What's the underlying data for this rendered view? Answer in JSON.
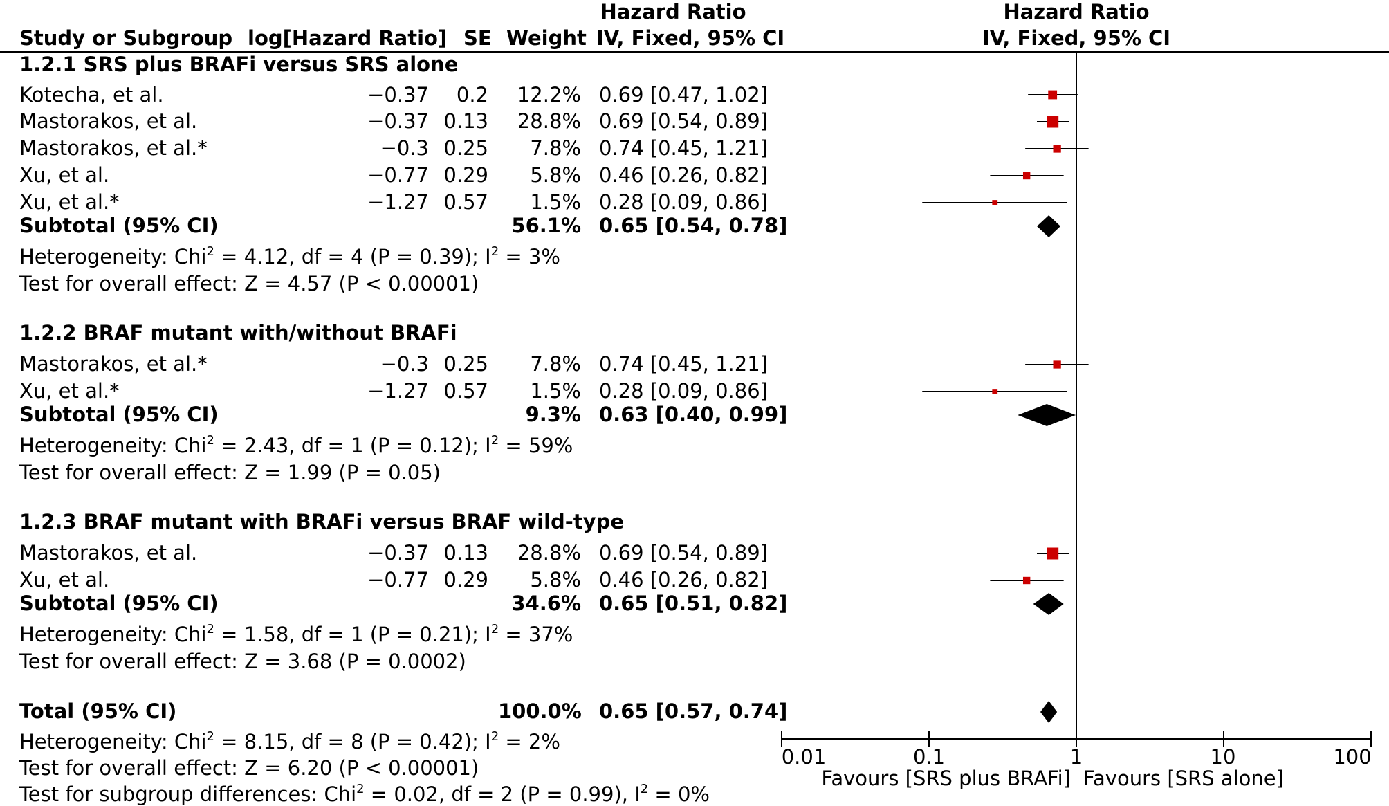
{
  "colors": {
    "box": "#cc0000",
    "diamond": "#000000",
    "line": "#000000"
  },
  "header": {
    "study": "Study or Subgroup",
    "loghr": "log[Hazard Ratio]",
    "se": "SE",
    "weight": "Weight",
    "hr_title": "Hazard Ratio",
    "hr_method": "IV, Fixed, 95% CI",
    "plot_title": "Hazard Ratio",
    "plot_method": "IV, Fixed, 95% CI"
  },
  "groups": [
    {
      "title": "1.2.1 SRS plus BRAFi versus SRS alone",
      "studies": [
        {
          "name": "Kotecha, et al.",
          "loghr": "−0.37",
          "se": "0.2",
          "weight": "12.2%",
          "ci": "0.69 [0.47, 1.02]"
        },
        {
          "name": "Mastorakos, et al.",
          "loghr": "−0.37",
          "se": "0.13",
          "weight": "28.8%",
          "ci": "0.69 [0.54, 0.89]"
        },
        {
          "name": "Mastorakos, et al.*",
          "loghr": "−0.3",
          "se": "0.25",
          "weight": "7.8%",
          "ci": "0.74 [0.45, 1.21]"
        },
        {
          "name": "Xu, et al.",
          "loghr": "−0.77",
          "se": "0.29",
          "weight": "5.8%",
          "ci": "0.46 [0.26, 0.82]"
        },
        {
          "name": "Xu, et al.*",
          "loghr": "−1.27",
          "se": "0.57",
          "weight": "1.5%",
          "ci": "0.28 [0.09, 0.86]"
        }
      ],
      "subtotal": {
        "label": "Subtotal (95% CI)",
        "weight": "56.1%",
        "ci": "0.65 [0.54, 0.78]"
      },
      "het": {
        "a": "Heterogeneity: Chi",
        "b": " = 4.12, df = 4 (P = 0.39); I",
        "c": " = 3%"
      },
      "effect": "Test for overall effect: Z = 4.57 (P < 0.00001)"
    },
    {
      "title": "1.2.2 BRAF mutant with/without BRAFi",
      "studies": [
        {
          "name": "Mastorakos, et al.*",
          "loghr": "−0.3",
          "se": "0.25",
          "weight": "7.8%",
          "ci": "0.74 [0.45, 1.21]"
        },
        {
          "name": "Xu, et al.*",
          "loghr": "−1.27",
          "se": "0.57",
          "weight": "1.5%",
          "ci": "0.28 [0.09, 0.86]"
        }
      ],
      "subtotal": {
        "label": "Subtotal (95% CI)",
        "weight": "9.3%",
        "ci": "0.63 [0.40, 0.99]"
      },
      "het": {
        "a": "Heterogeneity: Chi",
        "b": " = 2.43, df = 1 (P = 0.12); I",
        "c": " = 59%"
      },
      "effect": "Test for overall effect: Z = 1.99 (P = 0.05)"
    },
    {
      "title": "1.2.3 BRAF mutant with BRAFi versus BRAF wild-type",
      "studies": [
        {
          "name": "Mastorakos, et al.",
          "loghr": "−0.37",
          "se": "0.13",
          "weight": "28.8%",
          "ci": "0.69 [0.54, 0.89]"
        },
        {
          "name": "Xu, et al.",
          "loghr": "−0.77",
          "se": "0.29",
          "weight": "5.8%",
          "ci": "0.46 [0.26, 0.82]"
        }
      ],
      "subtotal": {
        "label": "Subtotal (95% CI)",
        "weight": "34.6%",
        "ci": "0.65 [0.51, 0.82]"
      },
      "het": {
        "a": "Heterogeneity: Chi",
        "b": " = 1.58, df = 1 (P = 0.21); I",
        "c": " = 37%"
      },
      "effect": "Test for overall effect: Z = 3.68 (P = 0.0002)"
    }
  ],
  "total": {
    "label": "Total (95% CI)",
    "weight": "100.0%",
    "ci": "0.65 [0.57, 0.74]",
    "het": {
      "a": "Heterogeneity: Chi",
      "b": " = 8.15, df = 8 (P = 0.42); I",
      "c": " = 2%"
    },
    "effect": "Test for overall effect: Z = 6.20 (P < 0.00001)",
    "subgroup": {
      "a": "Test for subgroup differences: Chi",
      "b": " = 0.02, df = 2 (P = 0.99), I",
      "c": " = 0%"
    }
  },
  "sup2": "2",
  "axis": {
    "ticks": [
      "0.01",
      "0.1",
      "1",
      "10",
      "100"
    ],
    "favours_left": "Favours [SRS plus BRAFi]",
    "favours_right": "Favours [SRS alone]"
  },
  "chart_data": {
    "type": "forest",
    "scale": "log",
    "xlim": [
      0.01,
      100
    ],
    "reference_line": 1,
    "series": [
      {
        "name": "1.2.1 SRS plus BRAFi versus SRS alone",
        "studies": [
          {
            "label": "Kotecha, et al.",
            "hr": 0.69,
            "lo": 0.47,
            "hi": 1.02,
            "weight": 12.2
          },
          {
            "label": "Mastorakos, et al.",
            "hr": 0.69,
            "lo": 0.54,
            "hi": 0.89,
            "weight": 28.8
          },
          {
            "label": "Mastorakos, et al.*",
            "hr": 0.74,
            "lo": 0.45,
            "hi": 1.21,
            "weight": 7.8
          },
          {
            "label": "Xu, et al.",
            "hr": 0.46,
            "lo": 0.26,
            "hi": 0.82,
            "weight": 5.8
          },
          {
            "label": "Xu, et al.*",
            "hr": 0.28,
            "lo": 0.09,
            "hi": 0.86,
            "weight": 1.5
          }
        ],
        "subtotal": {
          "hr": 0.65,
          "lo": 0.54,
          "hi": 0.78
        }
      },
      {
        "name": "1.2.2 BRAF mutant with/without BRAFi",
        "studies": [
          {
            "label": "Mastorakos, et al.*",
            "hr": 0.74,
            "lo": 0.45,
            "hi": 1.21,
            "weight": 7.8
          },
          {
            "label": "Xu, et al.*",
            "hr": 0.28,
            "lo": 0.09,
            "hi": 0.86,
            "weight": 1.5
          }
        ],
        "subtotal": {
          "hr": 0.63,
          "lo": 0.4,
          "hi": 0.99
        }
      },
      {
        "name": "1.2.3 BRAF mutant with BRAFi versus BRAF wild-type",
        "studies": [
          {
            "label": "Mastorakos, et al.",
            "hr": 0.69,
            "lo": 0.54,
            "hi": 0.89,
            "weight": 28.8
          },
          {
            "label": "Xu, et al.",
            "hr": 0.46,
            "lo": 0.26,
            "hi": 0.82,
            "weight": 5.8
          }
        ],
        "subtotal": {
          "hr": 0.65,
          "lo": 0.51,
          "hi": 0.82
        }
      }
    ],
    "total": {
      "hr": 0.65,
      "lo": 0.57,
      "hi": 0.74
    }
  }
}
